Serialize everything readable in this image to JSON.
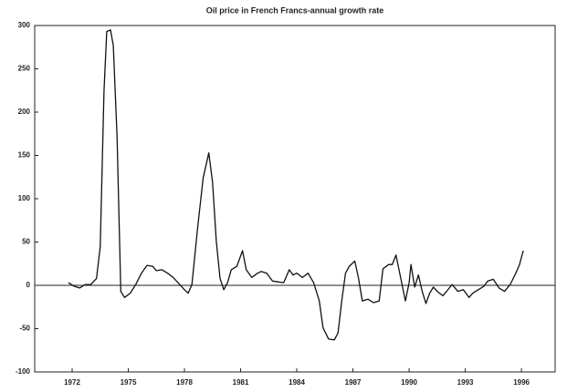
{
  "chart_data": {
    "type": "line",
    "title": "Oil price in French Francs-annual growth rate",
    "x": [
      1971.8,
      1972.1,
      1972.4,
      1972.7,
      1973.0,
      1973.3,
      1973.5,
      1973.7,
      1973.85,
      1974.05,
      1974.2,
      1974.4,
      1974.6,
      1974.8,
      1975.1,
      1975.4,
      1975.7,
      1976.0,
      1976.3,
      1976.5,
      1976.8,
      1977.1,
      1977.4,
      1977.7,
      1978.0,
      1978.2,
      1978.4,
      1978.7,
      1979.0,
      1979.3,
      1979.5,
      1979.7,
      1979.9,
      1980.1,
      1980.3,
      1980.5,
      1980.8,
      1981.1,
      1981.3,
      1981.6,
      1981.9,
      1982.1,
      1982.4,
      1982.7,
      1983.0,
      1983.3,
      1983.6,
      1983.8,
      1984.0,
      1984.3,
      1984.6,
      1984.9,
      1985.2,
      1985.4,
      1985.7,
      1986.0,
      1986.2,
      1986.4,
      1986.6,
      1986.8,
      1987.1,
      1987.3,
      1987.5,
      1987.8,
      1988.1,
      1988.4,
      1988.6,
      1988.9,
      1989.1,
      1989.3,
      1989.5,
      1989.8,
      1990.0,
      1990.1,
      1990.3,
      1990.5,
      1990.7,
      1990.9,
      1991.1,
      1991.3,
      1991.5,
      1991.8,
      1992.0,
      1992.3,
      1992.6,
      1992.9,
      1993.2,
      1993.4,
      1993.7,
      1994.0,
      1994.2,
      1994.5,
      1994.8,
      1995.1,
      1995.4,
      1995.7,
      1995.9,
      1996.1
    ],
    "series": [
      {
        "color": "#111111",
        "values": [
          3,
          -1,
          -3,
          1,
          1,
          8,
          45,
          224,
          293,
          295,
          277,
          172,
          -7,
          -14,
          -9,
          1,
          14,
          23,
          22,
          17,
          18,
          14,
          9,
          2,
          -5,
          -9,
          1,
          66,
          124,
          153,
          119,
          51,
          8,
          -5,
          3,
          18,
          22,
          40,
          18,
          9,
          14,
          16,
          14,
          5,
          4,
          3,
          18,
          12,
          14,
          9,
          14,
          3,
          -18,
          -49,
          -62,
          -63,
          -55,
          -18,
          14,
          22,
          28,
          8,
          -18,
          -16,
          -20,
          -18,
          19,
          24,
          24,
          35,
          14,
          -18,
          3,
          24,
          -2,
          12,
          -7,
          -21,
          -9,
          -2,
          -7,
          -12,
          -7,
          1,
          -7,
          -5,
          -14,
          -9,
          -5,
          -1,
          5,
          7,
          -3,
          -7,
          1,
          14,
          24,
          40
        ]
      }
    ],
    "xlim": [
      1970,
      1997.8
    ],
    "ylim": [
      -100,
      300
    ],
    "xticks": [
      1972,
      1975,
      1978,
      1981,
      1984,
      1987,
      1990,
      1993,
      1996
    ],
    "yticks": [
      -100,
      -50,
      0,
      50,
      100,
      150,
      200,
      250,
      300
    ]
  }
}
